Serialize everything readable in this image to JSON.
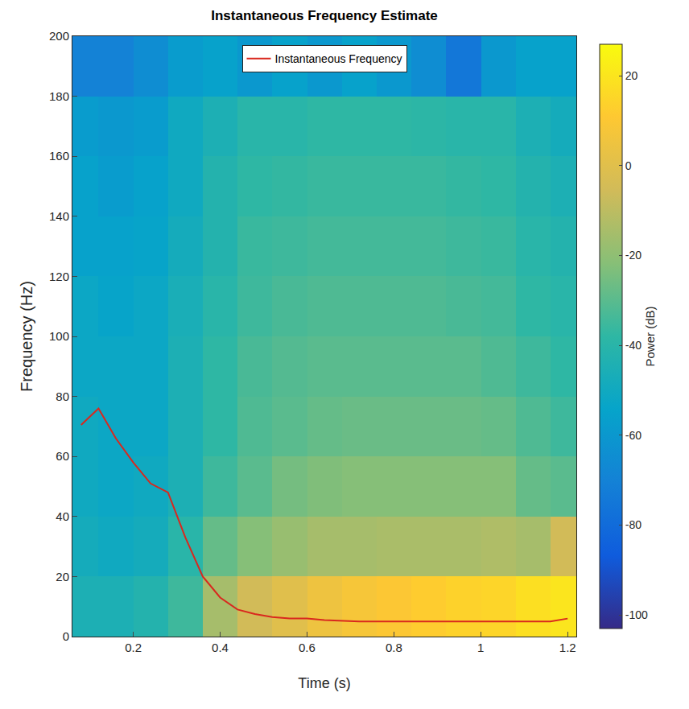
{
  "chart_data": {
    "type": "heatmap",
    "title": "Instantaneous Frequency Estimate",
    "x_label": "Time (s)",
    "y_label": "Frequency (Hz)",
    "xlim": [
      0.06,
      1.22
    ],
    "xticks": [
      0.2,
      0.4,
      0.6,
      0.8,
      1,
      1.2
    ],
    "ylim": [
      0,
      200
    ],
    "yticks": [
      0,
      20,
      40,
      60,
      80,
      100,
      120,
      140,
      160,
      180,
      200
    ],
    "grid": false,
    "legend": "top",
    "heatmap": {
      "x": [
        0.08,
        0.16,
        0.24,
        0.32,
        0.4,
        0.48,
        0.56,
        0.64,
        0.72,
        0.8,
        0.88,
        0.96,
        1.04,
        1.12,
        1.2
      ],
      "y": [
        10,
        30,
        50,
        70,
        90,
        110,
        130,
        150,
        170,
        190
      ],
      "cells": [
        [
          -45,
          -45,
          -42,
          -35,
          -15,
          -5,
          0,
          5,
          8,
          10,
          12,
          14,
          15,
          18,
          20
        ],
        [
          -48,
          -50,
          -48,
          -40,
          -28,
          -22,
          -18,
          -15,
          -15,
          -14,
          -14,
          -14,
          -13,
          -15,
          -5
        ],
        [
          -50,
          -52,
          -50,
          -45,
          -35,
          -30,
          -25,
          -23,
          -22,
          -22,
          -22,
          -22,
          -22,
          -28,
          -30
        ],
        [
          -50,
          -52,
          -52,
          -45,
          -38,
          -32,
          -30,
          -28,
          -27,
          -27,
          -27,
          -27,
          -28,
          -32,
          -35
        ],
        [
          -52,
          -52,
          -52,
          -45,
          -38,
          -33,
          -31,
          -30,
          -30,
          -30,
          -30,
          -30,
          -32,
          -35,
          -38
        ],
        [
          -52,
          -54,
          -52,
          -46,
          -40,
          -35,
          -33,
          -32,
          -32,
          -32,
          -32,
          -33,
          -34,
          -38,
          -40
        ],
        [
          -55,
          -55,
          -54,
          -48,
          -42,
          -36,
          -35,
          -34,
          -34,
          -34,
          -34,
          -35,
          -36,
          -40,
          -42
        ],
        [
          -55,
          -58,
          -55,
          -50,
          -42,
          -38,
          -37,
          -36,
          -36,
          -36,
          -36,
          -37,
          -38,
          -42,
          -45
        ],
        [
          -58,
          -60,
          -58,
          -50,
          -45,
          -40,
          -40,
          -38,
          -38,
          -38,
          -39,
          -40,
          -40,
          -45,
          -48
        ],
        [
          -70,
          -70,
          -65,
          -58,
          -55,
          -60,
          -55,
          -60,
          -55,
          -60,
          -65,
          -75,
          -60,
          -55,
          -55
        ]
      ],
      "colorbar": {
        "title": "Power (dB)",
        "range": [
          -103,
          27
        ],
        "ticks": [
          -100,
          -80,
          -60,
          -40,
          -20,
          0,
          20
        ]
      }
    },
    "series": [
      {
        "name": "Instantaneous Frequency",
        "type": "line",
        "color": "#d9281e",
        "x": [
          0.08,
          0.12,
          0.16,
          0.2,
          0.24,
          0.28,
          0.32,
          0.36,
          0.4,
          0.44,
          0.48,
          0.52,
          0.56,
          0.6,
          0.64,
          0.72,
          0.8,
          0.9,
          1.0,
          1.08,
          1.16,
          1.2
        ],
        "values": [
          70.5,
          76,
          66,
          58,
          51,
          48,
          33,
          20,
          13,
          9,
          7.5,
          6.5,
          6,
          6,
          5.5,
          5,
          5,
          5,
          5,
          5,
          5,
          6
        ]
      }
    ]
  }
}
